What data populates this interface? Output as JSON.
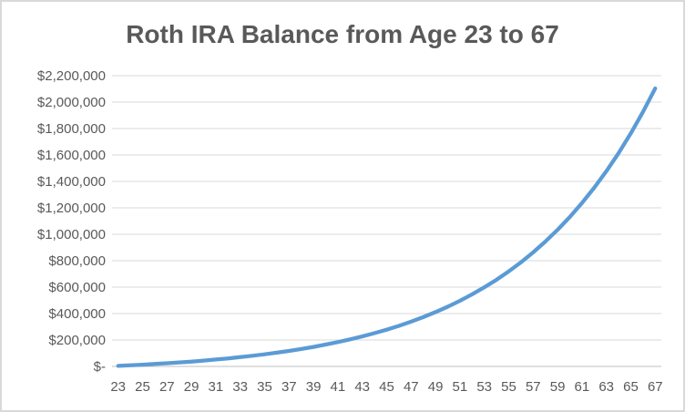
{
  "chart_data": {
    "type": "line",
    "title": "Roth IRA Balance from Age 23 to 67",
    "xlabel": "",
    "ylabel": "",
    "grid": true,
    "legend": "none",
    "xlim_categories": 45,
    "ylim": [
      0,
      2200000
    ],
    "x": [
      23,
      24,
      25,
      26,
      27,
      28,
      29,
      30,
      31,
      32,
      33,
      34,
      35,
      36,
      37,
      38,
      39,
      40,
      41,
      42,
      43,
      44,
      45,
      46,
      47,
      48,
      49,
      50,
      51,
      52,
      53,
      54,
      55,
      56,
      57,
      58,
      59,
      60,
      61,
      62,
      63,
      64,
      65,
      66,
      67
    ],
    "values": [
      4000,
      8400,
      13100,
      18300,
      23900,
      30100,
      36800,
      44100,
      52100,
      60800,
      70200,
      80600,
      91800,
      104100,
      117400,
      132000,
      147900,
      165200,
      184100,
      204600,
      227100,
      251500,
      278100,
      307200,
      338800,
      373300,
      410900,
      451900,
      496500,
      545200,
      598300,
      656100,
      719200,
      787900,
      862800,
      944500,
      1033500,
      1130500,
      1236300,
      1351500,
      1477200,
      1614100,
      1763400,
      1926100,
      2103400
    ],
    "x_tick_labels": [
      "23",
      "25",
      "27",
      "29",
      "31",
      "33",
      "35",
      "37",
      "39",
      "41",
      "43",
      "45",
      "47",
      "49",
      "51",
      "53",
      "55",
      "57",
      "59",
      "61",
      "63",
      "65",
      "67"
    ],
    "y_tick_values": [
      2200000,
      2000000,
      1800000,
      1600000,
      1400000,
      1200000,
      1000000,
      800000,
      600000,
      400000,
      200000,
      0
    ],
    "y_tick_labels": [
      "$2,200,000",
      "$2,000,000",
      "$1,800,000",
      "$1,600,000",
      "$1,400,000",
      "$1,200,000",
      "$1,000,000",
      "$800,000",
      "$600,000",
      "$400,000",
      "$200,000",
      "$-"
    ],
    "colors": {
      "line": "#5b9bd5",
      "gridline": "#d9d9d9",
      "axis_line": "#bfbfbf",
      "tick_label": "#595959",
      "title": "#595959",
      "frame_border": "#d9d9d9",
      "background": "#ffffff"
    }
  }
}
